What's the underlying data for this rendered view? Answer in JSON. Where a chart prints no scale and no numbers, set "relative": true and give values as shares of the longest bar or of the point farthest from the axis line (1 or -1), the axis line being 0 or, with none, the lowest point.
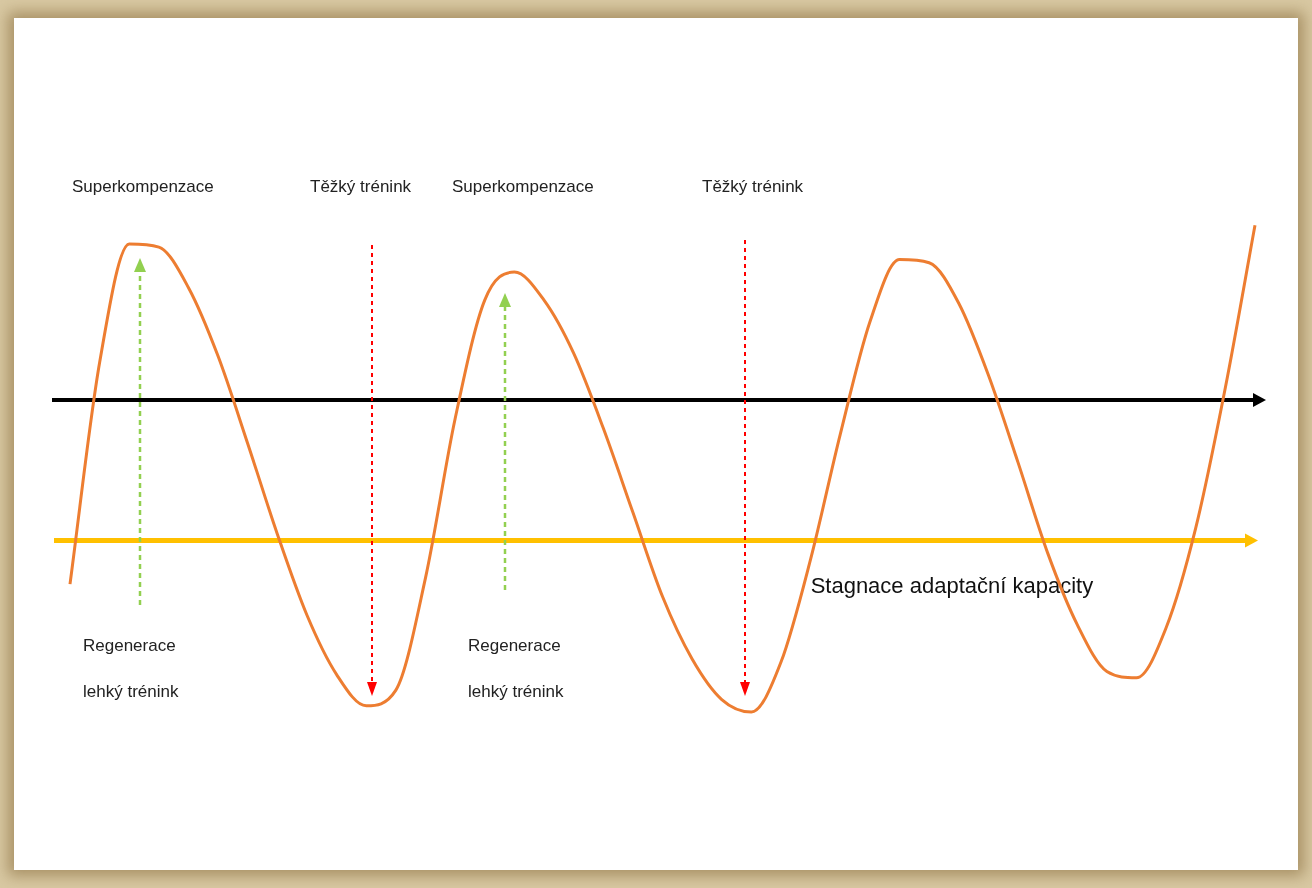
{
  "chart_data": {
    "type": "line",
    "relative": true,
    "marker": "none",
    "color": "#ed7d31",
    "categories": [
      null,
      null,
      null,
      null,
      null,
      null,
      null,
      null,
      null,
      null,
      null,
      null,
      null,
      null,
      null,
      null,
      null,
      null,
      null,
      null,
      null,
      null,
      null,
      null,
      null,
      null,
      null,
      null,
      null,
      null,
      null,
      null,
      null,
      null,
      null,
      null,
      null,
      null,
      null,
      null,
      null
    ],
    "values": [
      -0.59,
      0.12,
      0.5,
      0.49,
      0.36,
      0.14,
      -0.14,
      -0.43,
      -0.69,
      -0.88,
      -0.98,
      -0.93,
      -0.57,
      -0.06,
      0.32,
      0.41,
      0.32,
      0.15,
      -0.09,
      -0.36,
      -0.63,
      -0.83,
      -0.96,
      -1.0,
      -0.84,
      -0.51,
      -0.11,
      0.25,
      0.45,
      0.44,
      0.31,
      0.08,
      -0.2,
      -0.49,
      -0.72,
      -0.87,
      -0.89,
      -0.73,
      -0.41,
      0.04,
      0.56
    ],
    "ref_lines": [
      {
        "axis": "y",
        "value": -0.45,
        "label": "Stagnace adaptační kapacity",
        "color": "#ffc000"
      }
    ],
    "annotations": [
      "Superkompenzace",
      "Těžký trénink",
      "Superkompenzace",
      "Těžký trénink",
      "Regenerace",
      "lehký trénink",
      "Regenerace",
      "lehký trénink"
    ]
  }
}
